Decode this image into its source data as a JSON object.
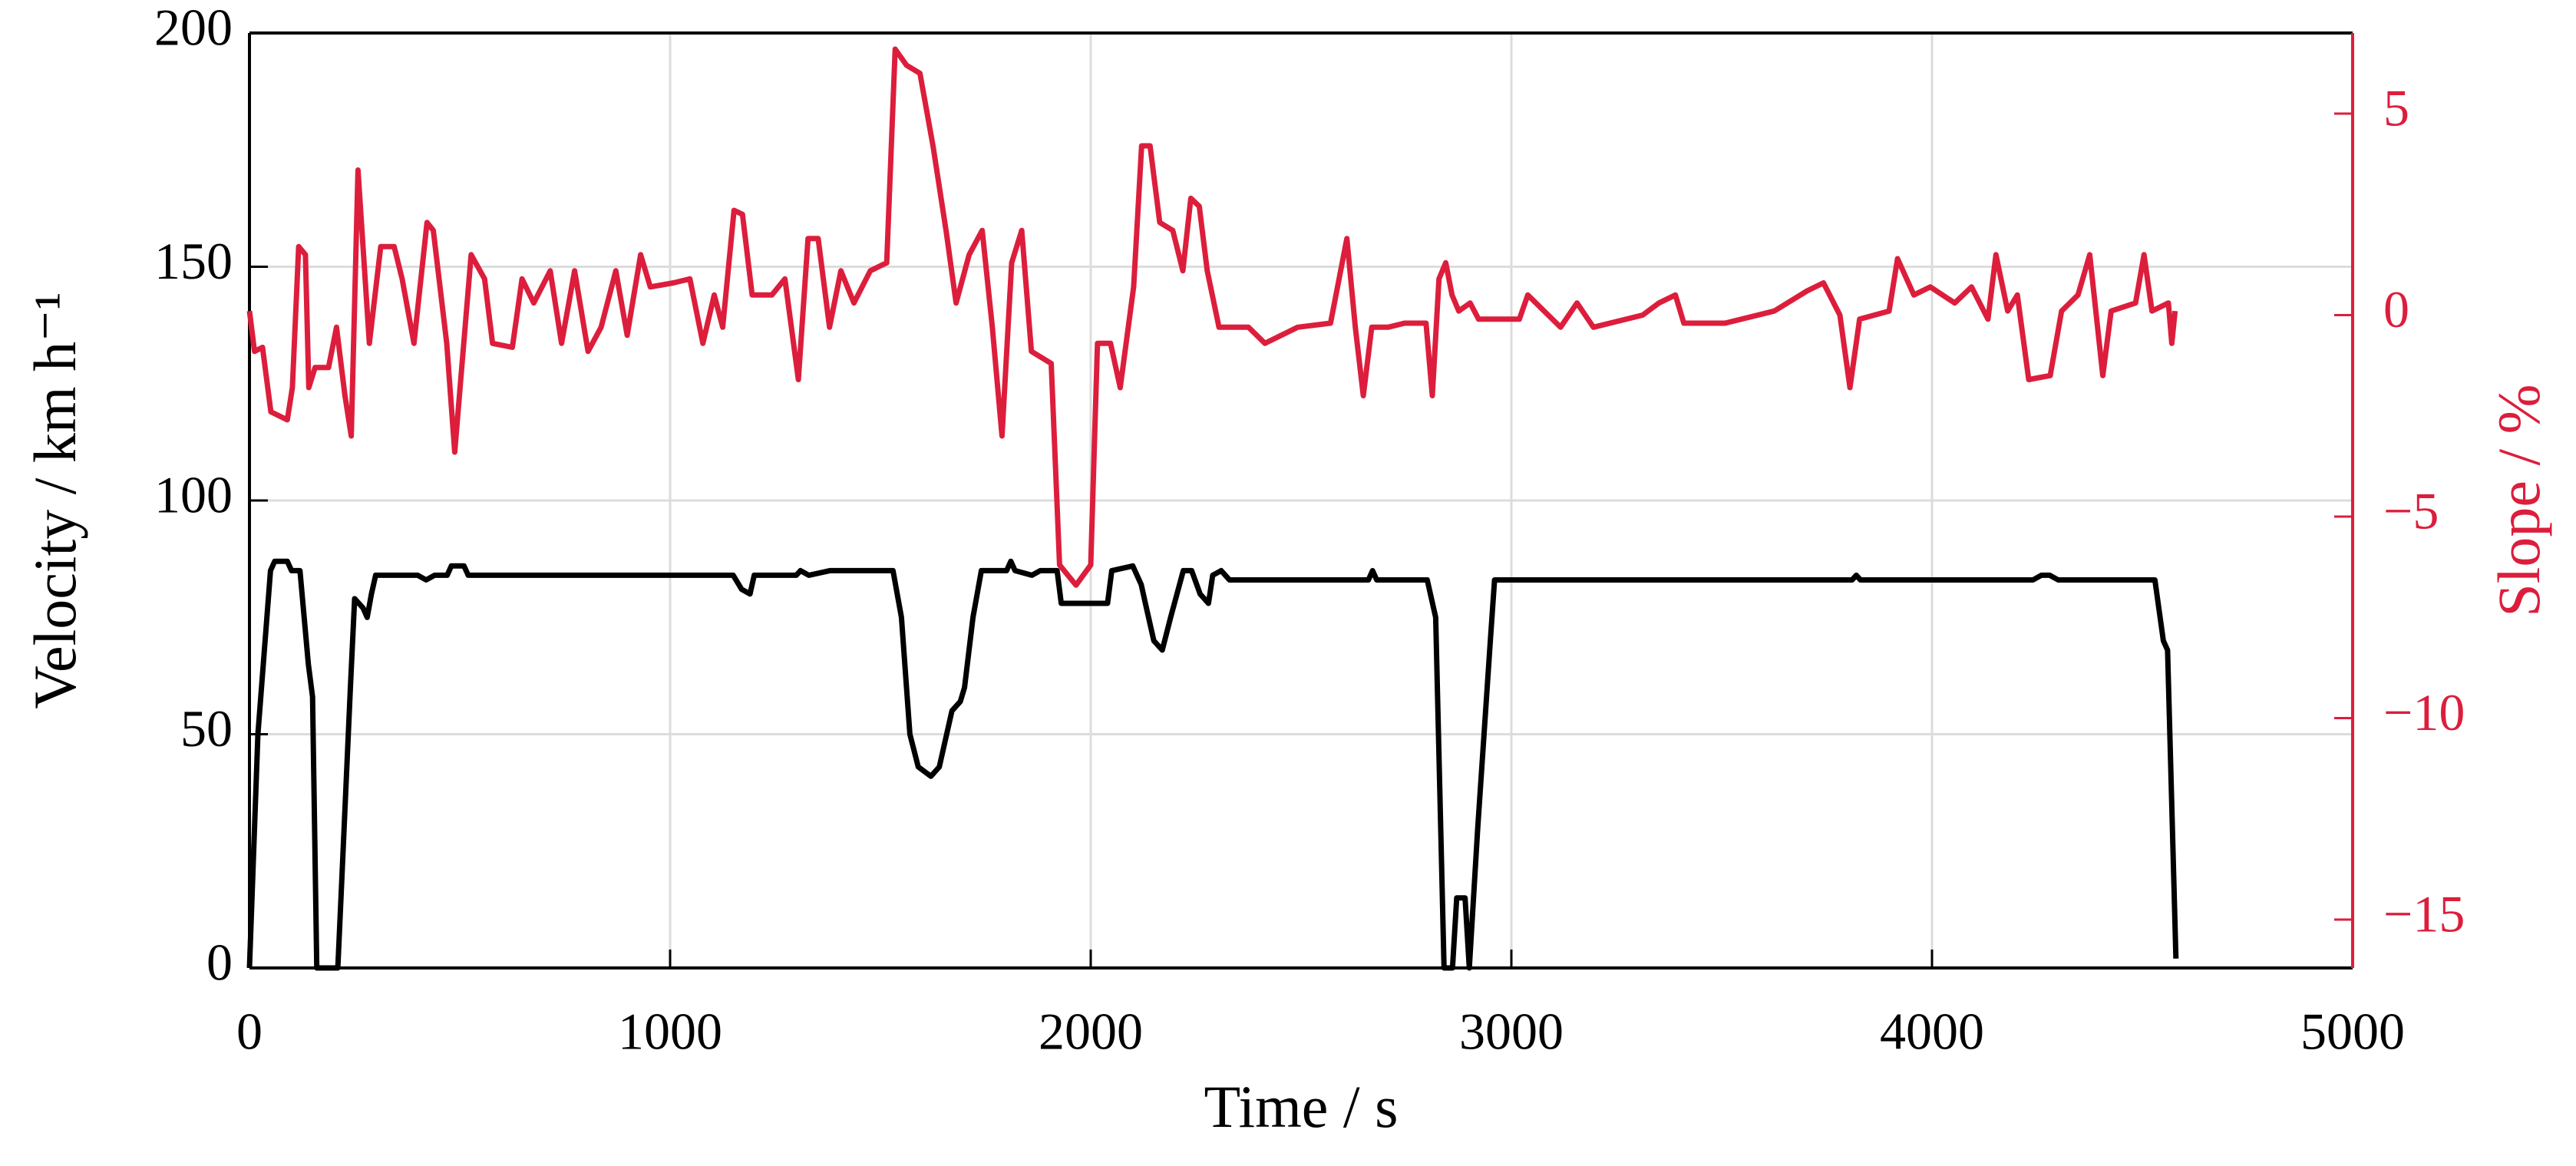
{
  "chart_data": {
    "type": "line",
    "xlabel": "Time / s",
    "ylabel": "Velocity / km h⁻¹",
    "y2label": "Slope / %",
    "xlim": [
      0,
      5000
    ],
    "xticks": [
      0,
      1000,
      2000,
      3000,
      4000,
      5000
    ],
    "ylim": [
      0,
      200
    ],
    "yticks": [
      0,
      50,
      100,
      150,
      200
    ],
    "y2lim": [
      -16.2,
      7
    ],
    "y2ticks": [
      5,
      0,
      {
        "value": -5,
        "label": "−5"
      },
      {
        "value": -10,
        "label": "−10"
      },
      {
        "value": -15,
        "label": "−15"
      }
    ],
    "y2color": "#dc1e3c",
    "grid": true,
    "series": [
      {
        "color": "#000000",
        "x": [
          0,
          20,
          50,
          60,
          90,
          100,
          120,
          140,
          150,
          160,
          210,
          220,
          240,
          250,
          270,
          280,
          290,
          300,
          400,
          420,
          440,
          470,
          480,
          510,
          520,
          1150,
          1170,
          1190,
          1200,
          1300,
          1310,
          1330,
          1380,
          1530,
          1550,
          1570,
          1590,
          1620,
          1640,
          1670,
          1690,
          1700,
          1720,
          1740,
          1800,
          1810,
          1820,
          1860,
          1880,
          1920,
          1930,
          2040,
          2050,
          2100,
          2120,
          2130,
          2150,
          2170,
          2190,
          2220,
          2240,
          2260,
          2280,
          2290,
          2310,
          2330,
          2660,
          2670,
          2680,
          2800,
          2820,
          2840,
          2860,
          2870,
          2890,
          2900,
          2920,
          2950,
          2960,
          3810,
          3820,
          3830,
          4240,
          4260,
          4280,
          4300,
          4530,
          4550,
          4560,
          4580
        ],
        "values": [
          0,
          50,
          85,
          87,
          87,
          85,
          85,
          65,
          58,
          0,
          0,
          20,
          60,
          79,
          77,
          75,
          80,
          84,
          84,
          83,
          84,
          84,
          86,
          86,
          84,
          84,
          81,
          80,
          84,
          84,
          85,
          84,
          85,
          85,
          75,
          50,
          43,
          41,
          43,
          55,
          57,
          60,
          75,
          85,
          85,
          87,
          85,
          84,
          85,
          85,
          78,
          78,
          85,
          86,
          82,
          78,
          70,
          68,
          75,
          85,
          85,
          80,
          78,
          84,
          85,
          83,
          83,
          85,
          83,
          83,
          75,
          0,
          0,
          15,
          15,
          0,
          30,
          70,
          83,
          83,
          84,
          83,
          83,
          84,
          84,
          83,
          83,
          70,
          68,
          2
        ]
      },
      {
        "color": "#dc1e3c",
        "axis": "y2",
        "x": [
          0,
          12,
          31,
          51,
          90,
          102,
          117,
          133,
          141,
          156,
          188,
          207,
          227,
          242,
          258,
          285,
          312,
          344,
          363,
          391,
          422,
          437,
          469,
          488,
          527,
          559,
          578,
          625,
          648,
          676,
          715,
          742,
          773,
          805,
          836,
          871,
          898,
          930,
          953,
          1008,
          1047,
          1078,
          1105,
          1125,
          1152,
          1172,
          1195,
          1242,
          1273,
          1305,
          1328,
          1352,
          1379,
          1406,
          1437,
          1476,
          1515,
          1535,
          1562,
          1594,
          1625,
          1656,
          1680,
          1711,
          1742,
          1766,
          1789,
          1812,
          1836,
          1859,
          1906,
          1926,
          1965,
          2000,
          2016,
          2047,
          2070,
          2102,
          2121,
          2141,
          2164,
          2195,
          2219,
          2238,
          2258,
          2277,
          2305,
          2375,
          2414,
          2492,
          2570,
          2609,
          2629,
          2648,
          2668,
          2707,
          2746,
          2797,
          2812,
          2828,
          2844,
          2859,
          2875,
          2902,
          2922,
          2980,
          3019,
          3039,
          3078,
          3117,
          3156,
          3195,
          3312,
          3351,
          3390,
          3410,
          3508,
          3625,
          3703,
          3742,
          3781,
          3805,
          3828,
          3898,
          3918,
          3957,
          3996,
          4054,
          4094,
          4133,
          4152,
          4180,
          4203,
          4230,
          4281,
          4308,
          4347,
          4375,
          4406,
          4426,
          4484,
          4504,
          4523,
          4562,
          4570,
          4578
        ],
        "values": [
          0.1,
          -0.9,
          -0.8,
          -2.4,
          -2.6,
          -1.8,
          1.7,
          1.5,
          -1.8,
          -1.3,
          -1.3,
          -0.3,
          -2.0,
          -3.0,
          3.6,
          -0.7,
          1.7,
          1.7,
          0.9,
          -0.7,
          2.3,
          2.1,
          -0.7,
          -3.4,
          1.5,
          0.9,
          -0.7,
          -0.8,
          0.9,
          0.3,
          1.1,
          -0.7,
          1.1,
          -0.9,
          -0.3,
          1.1,
          -0.5,
          1.5,
          0.7,
          0.8,
          0.9,
          -0.7,
          0.5,
          -0.3,
          2.6,
          2.5,
          0.5,
          0.5,
          0.9,
          -1.6,
          1.9,
          1.9,
          -0.3,
          1.1,
          0.3,
          1.1,
          1.3,
          6.6,
          6.2,
          6.0,
          4.2,
          2.1,
          0.3,
          1.5,
          2.1,
          -0.3,
          -3.0,
          1.3,
          2.1,
          -0.9,
          -1.2,
          -6.2,
          -6.7,
          -6.2,
          -0.7,
          -0.7,
          -1.8,
          0.7,
          4.2,
          4.2,
          2.3,
          2.1,
          1.1,
          2.9,
          2.7,
          1.1,
          -0.3,
          -0.3,
          -0.7,
          -0.3,
          -0.2,
          1.9,
          -0.3,
          -2.0,
          -0.3,
          -0.3,
          -0.2,
          -0.2,
          -2.0,
          0.9,
          1.3,
          0.5,
          0.1,
          0.3,
          -0.1,
          -0.1,
          -0.1,
          0.5,
          0.1,
          -0.3,
          0.3,
          -0.3,
          0,
          0.3,
          0.5,
          -0.2,
          -0.2,
          0.1,
          0.6,
          0.8,
          0,
          -1.8,
          -0.1,
          0.1,
          1.4,
          0.5,
          0.7,
          0.3,
          0.7,
          -0.1,
          1.5,
          0.1,
          0.5,
          -1.6,
          -1.5,
          0.1,
          0.5,
          1.5,
          -1.5,
          0.1,
          0.3,
          1.5,
          0.1,
          0.3,
          -0.7,
          0.1
        ]
      }
    ]
  }
}
